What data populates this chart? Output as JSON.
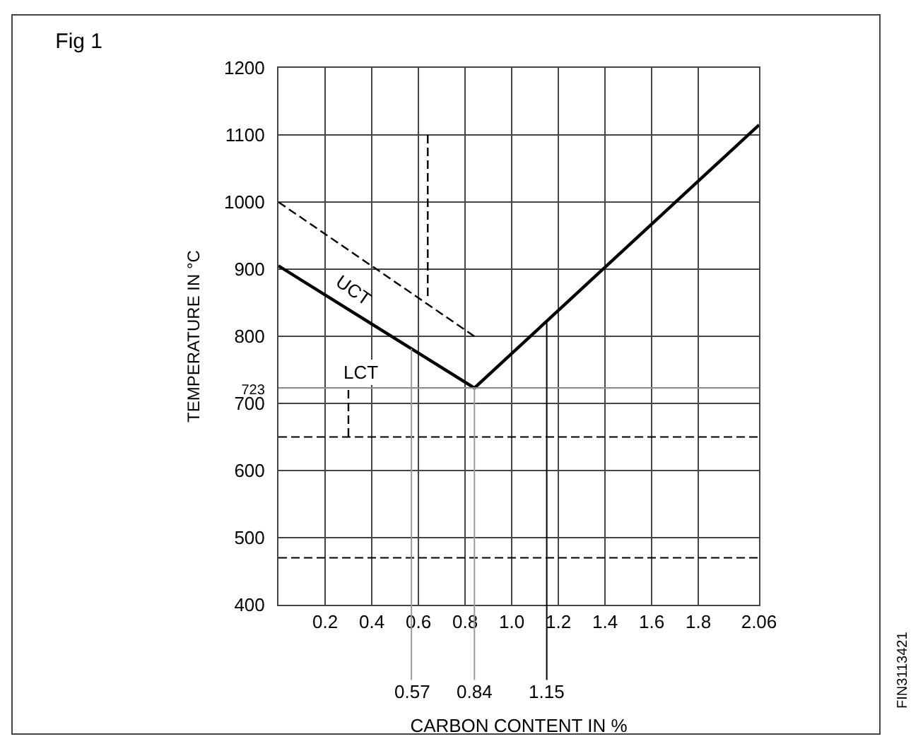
{
  "chart_data": {
    "type": "line",
    "title": "Fig 1",
    "xlabel": "CARBON CONTENT IN %",
    "ylabel": "TEMPERATURE IN °C",
    "series": [
      {
        "color": "#000000",
        "line_style": "solid",
        "x": [
          0,
          0.84,
          2.06
        ],
        "values": [
          905,
          723,
          1115
        ]
      },
      {
        "color": "#000000",
        "line_style": "dashed",
        "x": [
          0,
          0.84
        ],
        "values": [
          1000,
          800
        ]
      },
      {
        "color": "#000000",
        "line_style": "dashed",
        "x": [
          0.64,
          0.64
        ],
        "values": [
          1100,
          855
        ]
      },
      {
        "color": "#000000",
        "line_style": "dashed",
        "x": [
          0.3,
          0.3
        ],
        "values": [
          720,
          650
        ]
      }
    ],
    "xlim": [
      0,
      2.06
    ],
    "xticks": [
      0.2,
      0.4,
      0.6,
      0.8,
      {
        "value": 1,
        "label": "1.0"
      },
      1.2,
      1.4,
      1.6,
      1.8,
      2.06
    ],
    "ylim": [
      400,
      1200
    ],
    "yticks": [
      400,
      500,
      600,
      700,
      {
        "value": 723,
        "label": "723"
      },
      800,
      900,
      1000,
      1100,
      1200
    ],
    "grid": true,
    "marker": "none",
    "ref_lines": [
      {
        "axis": "y",
        "value": 723,
        "label": "LCT",
        "color": "#999999"
      },
      {
        "axis": "y",
        "value": 650,
        "line_style": "dashed",
        "color": "#000000"
      },
      {
        "axis": "y",
        "value": 470,
        "line_style": "dashed",
        "color": "#000000"
      },
      {
        "axis": "x",
        "value": 0.57,
        "label": "0.57",
        "color": "#999999"
      },
      {
        "axis": "x",
        "value": 0.84,
        "label": "0.84",
        "color": "#999999"
      },
      {
        "axis": "x",
        "value": 1.15,
        "label": "1.15",
        "color": "#000000"
      }
    ],
    "annotations": [
      {
        "text": "UCT",
        "x": 0.3,
        "y": 840
      },
      "FIN3113421"
    ]
  }
}
